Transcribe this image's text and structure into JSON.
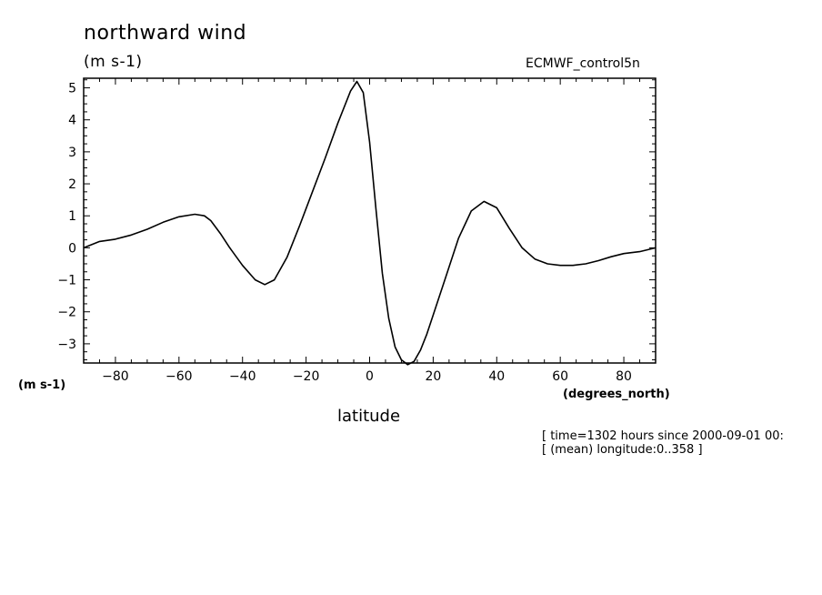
{
  "chart_data": {
    "type": "line",
    "title": "northward wind",
    "units_label": "(m s-1)",
    "source_label": "ECMWF_control5n",
    "y_units_label": "(m s-1)",
    "x_units_label": "(degrees_north)",
    "xlabel": "latitude",
    "ylabel": "",
    "xlim": [
      -90,
      90
    ],
    "ylim": [
      -3.6,
      5.3
    ],
    "xticks": [
      -80,
      -60,
      -40,
      -20,
      0,
      20,
      40,
      60,
      80
    ],
    "yticks": [
      -3,
      -2,
      -1,
      0,
      1,
      2,
      3,
      4,
      5
    ],
    "grid": false,
    "series": [
      {
        "x": [
          -90,
          -85,
          -80,
          -75,
          -70,
          -65,
          -60,
          -55,
          -52,
          -50,
          -47,
          -44,
          -40,
          -36,
          -33,
          -30,
          -26,
          -22,
          -18,
          -14,
          -10,
          -6,
          -4,
          -2,
          0,
          2,
          4,
          6,
          8,
          10,
          12,
          14,
          16,
          18,
          20,
          24,
          28,
          32,
          36,
          40,
          44,
          48,
          52,
          56,
          60,
          64,
          68,
          72,
          76,
          80,
          85,
          90
        ],
        "y": [
          0.0,
          0.2,
          0.27,
          0.4,
          0.58,
          0.8,
          0.97,
          1.05,
          1.0,
          0.85,
          0.45,
          0.0,
          -0.55,
          -1.0,
          -1.15,
          -1.0,
          -0.3,
          0.7,
          1.75,
          2.8,
          3.9,
          4.9,
          5.2,
          4.85,
          3.3,
          1.2,
          -0.8,
          -2.2,
          -3.1,
          -3.5,
          -3.65,
          -3.55,
          -3.2,
          -2.7,
          -2.1,
          -0.9,
          0.3,
          1.15,
          1.45,
          1.25,
          0.6,
          0.0,
          -0.35,
          -0.5,
          -0.55,
          -0.55,
          -0.5,
          -0.4,
          -0.28,
          -0.18,
          -0.12,
          0.0
        ]
      }
    ]
  },
  "notes": [
    "[ time=1302 hours since 2000-09-01 00:",
    "[ (mean) longitude:0..358 ]"
  ]
}
